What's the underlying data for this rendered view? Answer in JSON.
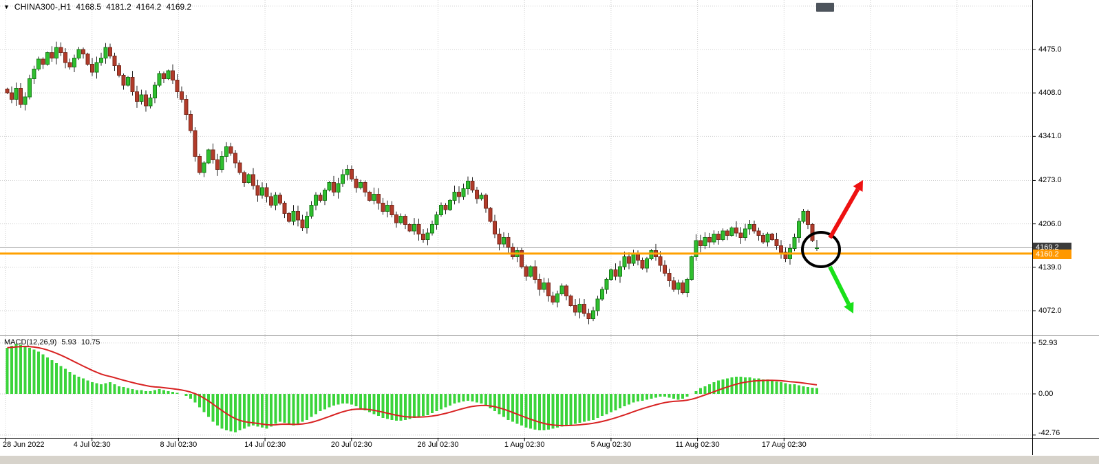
{
  "header": {
    "symbol": "CHINA300-,H1",
    "open": "4168.5",
    "high": "4181.2",
    "low": "4164.2",
    "close": "4169.2"
  },
  "price_axis": {
    "labels": [
      "4475.0",
      "4408.0",
      "4341.0",
      "4273.0",
      "4206.0",
      "4139.0",
      "4072.0"
    ],
    "current_badge": "4169.2",
    "line_badge": "4160.2"
  },
  "time_axis": {
    "labels": [
      "28 Jun 2022",
      "4 Jul 02:30",
      "8 Jul 02:30",
      "14 Jul 02:30",
      "20 Jul 02:30",
      "26 Jul 02:30",
      "1 Aug 02:30",
      "5 Aug 02:30",
      "11 Aug 02:30",
      "17 Aug 02:30"
    ]
  },
  "macd_panel": {
    "label": "MACD(12,26,9)",
    "macd_value": "5.93",
    "signal_value": "10.75",
    "axis_labels": [
      "52.93",
      "0.00",
      "-42.76"
    ]
  },
  "colors": {
    "up": "#2fbf2f",
    "up_border": "#157a15",
    "down": "#b23b2a",
    "down_border": "#77281c",
    "wick": "#222222",
    "grid": "#cfcfcf",
    "macd_bar": "#3bd43b",
    "signal_line": "#d82222",
    "hline": "#ffa000",
    "hline_badge": "#ff9800",
    "current_line": "#9a9a9a",
    "current_badge": "#3b3b3b",
    "arrow_up": "#ee1111",
    "arrow_down": "#19e019",
    "annotation_circle": "#000000",
    "shift_marker": "#4d545c",
    "separator": "#000000",
    "pane_separator": "#8a8a8a"
  },
  "chart_data": {
    "type": "candlestick",
    "title": "CHINA300-,H1",
    "symbol": "CHINA300-",
    "timeframe": "H1",
    "y_ticks": [
      4475,
      4408,
      4341,
      4273,
      4206,
      4139,
      4072
    ],
    "x_tick_labels": [
      "28 Jun 2022",
      "4 Jul 02:30",
      "8 Jul 02:30",
      "14 Jul 02:30",
      "20 Jul 02:30",
      "26 Jul 02:30",
      "1 Aug 02:30",
      "5 Aug 02:30",
      "11 Aug 02:30",
      "17 Aug 02:30"
    ],
    "current_price": 4169.2,
    "horizontal_line_price": 4160.2,
    "last_candle": {
      "open": 4168.5,
      "high": 4181.2,
      "low": 4164.2,
      "close": 4169.2
    },
    "closes": [
      4408,
      4398,
      4415,
      4390,
      4402,
      4430,
      4445,
      4460,
      4452,
      4470,
      4462,
      4478,
      4470,
      4455,
      4448,
      4462,
      4475,
      4468,
      4452,
      4440,
      4455,
      4462,
      4478,
      4465,
      4450,
      4435,
      4420,
      4432,
      4410,
      4395,
      4405,
      4388,
      4400,
      4420,
      4438,
      4430,
      4442,
      4428,
      4410,
      4398,
      4375,
      4350,
      4310,
      4285,
      4300,
      4320,
      4305,
      4290,
      4310,
      4325,
      4315,
      4300,
      4285,
      4270,
      4282,
      4265,
      4250,
      4262,
      4248,
      4235,
      4250,
      4238,
      4222,
      4210,
      4225,
      4212,
      4200,
      4218,
      4235,
      4250,
      4242,
      4258,
      4270,
      4255,
      4268,
      4282,
      4290,
      4275,
      4262,
      4270,
      4255,
      4242,
      4252,
      4238,
      4225,
      4235,
      4220,
      4208,
      4218,
      4205,
      4195,
      4205,
      4190,
      4182,
      4192,
      4205,
      4220,
      4235,
      4228,
      4242,
      4255,
      4248,
      4260,
      4272,
      4258,
      4245,
      4250,
      4230,
      4210,
      4190,
      4175,
      4185,
      4170,
      4155,
      4165,
      4140,
      4125,
      4140,
      4120,
      4105,
      4115,
      4095,
      4085,
      4098,
      4110,
      4095,
      4080,
      4070,
      4082,
      4068,
      4060,
      4072,
      4090,
      4105,
      4120,
      4135,
      4125,
      4140,
      4155,
      4145,
      4160,
      4150,
      4138,
      4152,
      4165,
      4155,
      4142,
      4130,
      4118,
      4105,
      4115,
      4100,
      4120,
      4155,
      4180,
      4172,
      4185,
      4178,
      4190,
      4182,
      4195,
      4188,
      4200,
      4192,
      4185,
      4198,
      4205,
      4195,
      4188,
      4178,
      4190,
      4182,
      4172,
      4162,
      4152,
      4168,
      4185,
      4210,
      4225,
      4205,
      4180,
      4169.2
    ],
    "indicator": {
      "name": "MACD",
      "params": "12,26,9",
      "macd": 5.93,
      "signal": 10.75,
      "y_ticks": [
        52.93,
        0,
        -42.76
      ],
      "histogram": [
        48,
        50,
        52,
        51,
        50,
        48,
        46,
        44,
        41,
        38,
        35,
        32,
        29,
        26,
        23,
        20,
        18,
        16,
        14,
        12,
        11,
        10,
        11,
        12,
        10,
        8,
        7,
        6,
        5,
        4,
        4,
        3,
        3,
        4,
        5,
        4,
        3,
        2,
        1,
        0,
        -2,
        -5,
        -9,
        -14,
        -19,
        -24,
        -29,
        -33,
        -36,
        -38,
        -39,
        -40,
        -38,
        -36,
        -34,
        -33,
        -34,
        -35,
        -36,
        -34,
        -31,
        -29,
        -30,
        -32,
        -33,
        -31,
        -29,
        -27,
        -24,
        -21,
        -18,
        -16,
        -14,
        -12,
        -11,
        -10,
        -10,
        -11,
        -13,
        -15,
        -17,
        -19,
        -21,
        -23,
        -25,
        -26,
        -27,
        -28,
        -28,
        -27,
        -26,
        -25,
        -24,
        -23,
        -22,
        -20,
        -18,
        -16,
        -14,
        -12,
        -10,
        -9,
        -8,
        -7,
        -8,
        -9,
        -10,
        -12,
        -15,
        -18,
        -21,
        -24,
        -27,
        -29,
        -31,
        -33,
        -35,
        -36,
        -37,
        -38,
        -38,
        -37,
        -36,
        -35,
        -34,
        -33,
        -32,
        -31,
        -30,
        -29,
        -28,
        -27,
        -25,
        -23,
        -21,
        -19,
        -17,
        -15,
        -13,
        -11,
        -9,
        -8,
        -7,
        -6,
        -5,
        -4,
        -3,
        -3,
        -4,
        -5,
        -6,
        -5,
        -3,
        0,
        3,
        6,
        8,
        10,
        12,
        14,
        15,
        16,
        17,
        18,
        18,
        17,
        17,
        16,
        16,
        15,
        15,
        14,
        13,
        12,
        11,
        10,
        10,
        9,
        8,
        7,
        6.5,
        5.93
      ]
    }
  }
}
